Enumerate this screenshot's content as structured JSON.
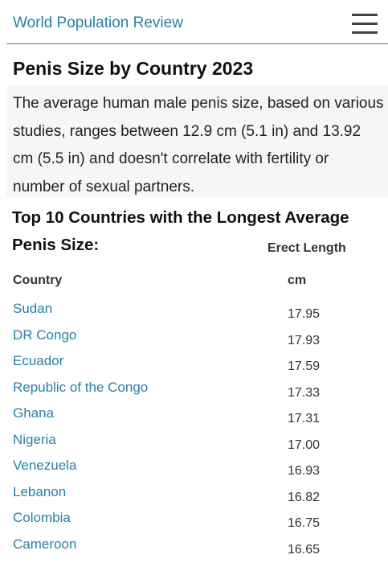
{
  "header": {
    "title": "World Population Review"
  },
  "article": {
    "title": "Penis Size by Country 2023",
    "intro": "The average human male penis size, based on various studies, ranges between 12.9 cm (5.1 in) and 13.92 cm (5.5 in) and doesn't correlate with fertility or number of sexual partners."
  },
  "section": {
    "heading": "Top 10 Countries with the Longest Average Penis Size:"
  },
  "table": {
    "column_group": "Erect Length",
    "columns": [
      "Country",
      "cm"
    ],
    "rows": [
      [
        "Sudan",
        "17.95"
      ],
      [
        "DR Congo",
        "17.93"
      ],
      [
        "Ecuador",
        "17.59"
      ],
      [
        "Republic of the Congo",
        "17.33"
      ],
      [
        "Ghana",
        "17.31"
      ],
      [
        "Nigeria",
        "17.00"
      ],
      [
        "Venezuela",
        "16.93"
      ],
      [
        "Lebanon",
        "16.82"
      ],
      [
        "Colombia",
        "16.75"
      ],
      [
        "Cameroon",
        "16.65"
      ]
    ]
  }
}
